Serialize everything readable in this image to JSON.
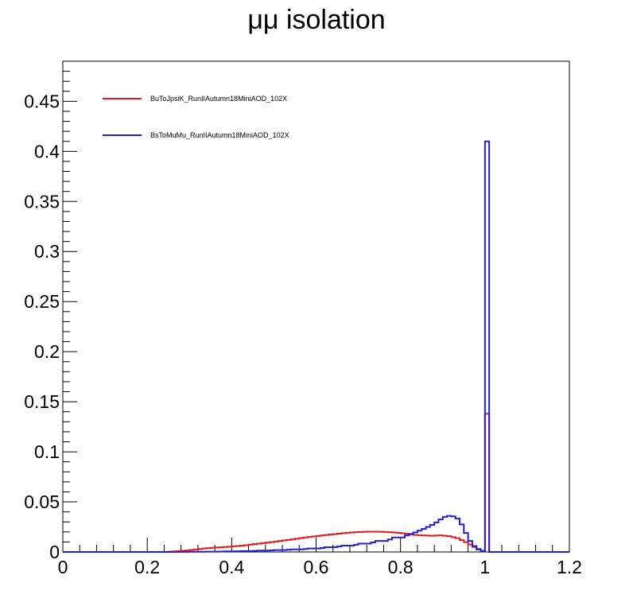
{
  "chart_data": {
    "type": "line",
    "title": "μμ isolation",
    "xlabel": "",
    "ylabel": "",
    "xlim": [
      0,
      1.2
    ],
    "ylim": [
      0,
      0.49
    ],
    "x_ticks": [
      "0",
      "0.2",
      "0.4",
      "0.6",
      "0.8",
      "1",
      "1.2"
    ],
    "y_ticks": [
      "0",
      "0.05",
      "0.1",
      "0.15",
      "0.2",
      "0.25",
      "0.3",
      "0.35",
      "0.4",
      "0.45"
    ],
    "grid": false,
    "legend_position": "top-left",
    "bin_width": 0.01,
    "series": [
      {
        "name": "BuToJpsiK_RunIIAutumn18MiniAOD_102X",
        "color": "#e41a1c",
        "x": [
          0.25,
          0.27,
          0.29,
          0.31,
          0.33,
          0.35,
          0.37,
          0.39,
          0.41,
          0.43,
          0.45,
          0.47,
          0.49,
          0.51,
          0.53,
          0.55,
          0.57,
          0.59,
          0.61,
          0.63,
          0.65,
          0.67,
          0.69,
          0.71,
          0.73,
          0.75,
          0.77,
          0.79,
          0.81,
          0.83,
          0.85,
          0.87,
          0.89,
          0.91,
          0.93,
          0.95,
          0.97,
          0.99,
          1.0
        ],
        "y": [
          0.0003,
          0.0008,
          0.0015,
          0.0025,
          0.0035,
          0.0042,
          0.0047,
          0.0053,
          0.006,
          0.0068,
          0.0078,
          0.0088,
          0.0098,
          0.011,
          0.012,
          0.0132,
          0.0145,
          0.0155,
          0.0165,
          0.0175,
          0.0183,
          0.0192,
          0.0198,
          0.0202,
          0.0203,
          0.0202,
          0.0198,
          0.0192,
          0.0182,
          0.017,
          0.0165,
          0.0162,
          0.0166,
          0.0158,
          0.0138,
          0.0098,
          0.005,
          0.0012,
          0.138
        ]
      },
      {
        "name": "BsToMuMu_RunIIAutumn18MiniAOD_102X",
        "color": "#1f1fdc",
        "x": [
          0.25,
          0.29,
          0.33,
          0.37,
          0.41,
          0.45,
          0.49,
          0.53,
          0.57,
          0.61,
          0.65,
          0.69,
          0.73,
          0.77,
          0.81,
          0.83,
          0.85,
          0.87,
          0.88,
          0.89,
          0.9,
          0.91,
          0.92,
          0.93,
          0.94,
          0.95,
          0.96,
          0.97,
          0.98,
          0.99,
          1.0
        ],
        "y": [
          0.0,
          0.0001,
          0.0002,
          0.0004,
          0.0007,
          0.0011,
          0.0016,
          0.0022,
          0.003,
          0.004,
          0.0055,
          0.0072,
          0.0095,
          0.0125,
          0.0165,
          0.0195,
          0.023,
          0.027,
          0.0295,
          0.0325,
          0.035,
          0.036,
          0.0355,
          0.0335,
          0.0275,
          0.019,
          0.011,
          0.006,
          0.0025,
          0.0008,
          0.41
        ]
      }
    ]
  }
}
